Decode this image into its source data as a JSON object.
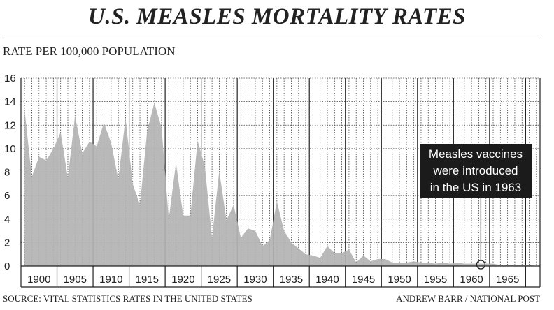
{
  "title": "U.S. MEASLES MORTALITY RATES",
  "ylabel": "RATE PER 100,000 POPULATION",
  "source": "SOURCE: VITAL STATISTICS RATES IN THE UNITED STATES",
  "credit": "ANDREW BARR / NATIONAL POST",
  "annotation": {
    "line1": "Measles vaccines",
    "line2": "were introduced",
    "line3": "in the US in 1963",
    "marker_year": 1961
  },
  "colors": {
    "area": "#b3b3b3",
    "grid": "#444444",
    "box": "#1b1b1b"
  },
  "chart_data": {
    "type": "area",
    "title": "U.S. MEASLES MORTALITY RATES",
    "ylabel": "RATE PER 100,000 POPULATION",
    "xlabel": "",
    "xlim": [
      1897.5,
      1969.5
    ],
    "ylim": [
      0,
      16
    ],
    "yticks": [
      0,
      2,
      4,
      6,
      8,
      10,
      12,
      14,
      16
    ],
    "xticks": [
      1900,
      1905,
      1910,
      1915,
      1920,
      1925,
      1930,
      1935,
      1940,
      1945,
      1950,
      1955,
      1960,
      1965
    ],
    "grid": true,
    "x": [
      1898,
      1899,
      1900,
      1901,
      1902,
      1903,
      1904,
      1905,
      1906,
      1907,
      1908,
      1909,
      1910,
      1911,
      1912,
      1913,
      1914,
      1915,
      1916,
      1917,
      1918,
      1919,
      1920,
      1921,
      1922,
      1923,
      1924,
      1925,
      1926,
      1927,
      1928,
      1929,
      1930,
      1931,
      1932,
      1933,
      1934,
      1935,
      1936,
      1937,
      1938,
      1939,
      1940,
      1941,
      1942,
      1943,
      1944,
      1945,
      1946,
      1947,
      1948,
      1949,
      1950,
      1951,
      1952,
      1953,
      1954,
      1955,
      1956,
      1957,
      1958,
      1959,
      1960,
      1961,
      1962,
      1963,
      1964,
      1965,
      1966,
      1967,
      1968,
      1969
    ],
    "values": [
      13.3,
      7.6,
      9.3,
      9.0,
      10.0,
      11.4,
      7.5,
      12.8,
      9.6,
      10.6,
      10.2,
      12.2,
      10.5,
      7.4,
      12.6,
      7.0,
      5.2,
      11.5,
      13.9,
      11.8,
      4.0,
      8.8,
      4.3,
      4.3,
      10.7,
      8.5,
      2.4,
      8.1,
      3.9,
      5.2,
      2.4,
      3.2,
      3.0,
      1.7,
      2.2,
      5.5,
      3.0,
      2.0,
      1.5,
      1.0,
      0.9,
      0.7,
      1.7,
      1.1,
      1.1,
      1.4,
      0.3,
      0.9,
      0.4,
      0.6,
      0.6,
      0.3,
      0.3,
      0.3,
      0.4,
      0.3,
      0.3,
      0.2,
      0.3,
      0.2,
      0.3,
      0.2,
      0.2,
      0.2,
      0.2,
      0.2,
      0.1,
      0.1,
      0.1,
      0.1,
      0.1,
      0.0
    ]
  }
}
